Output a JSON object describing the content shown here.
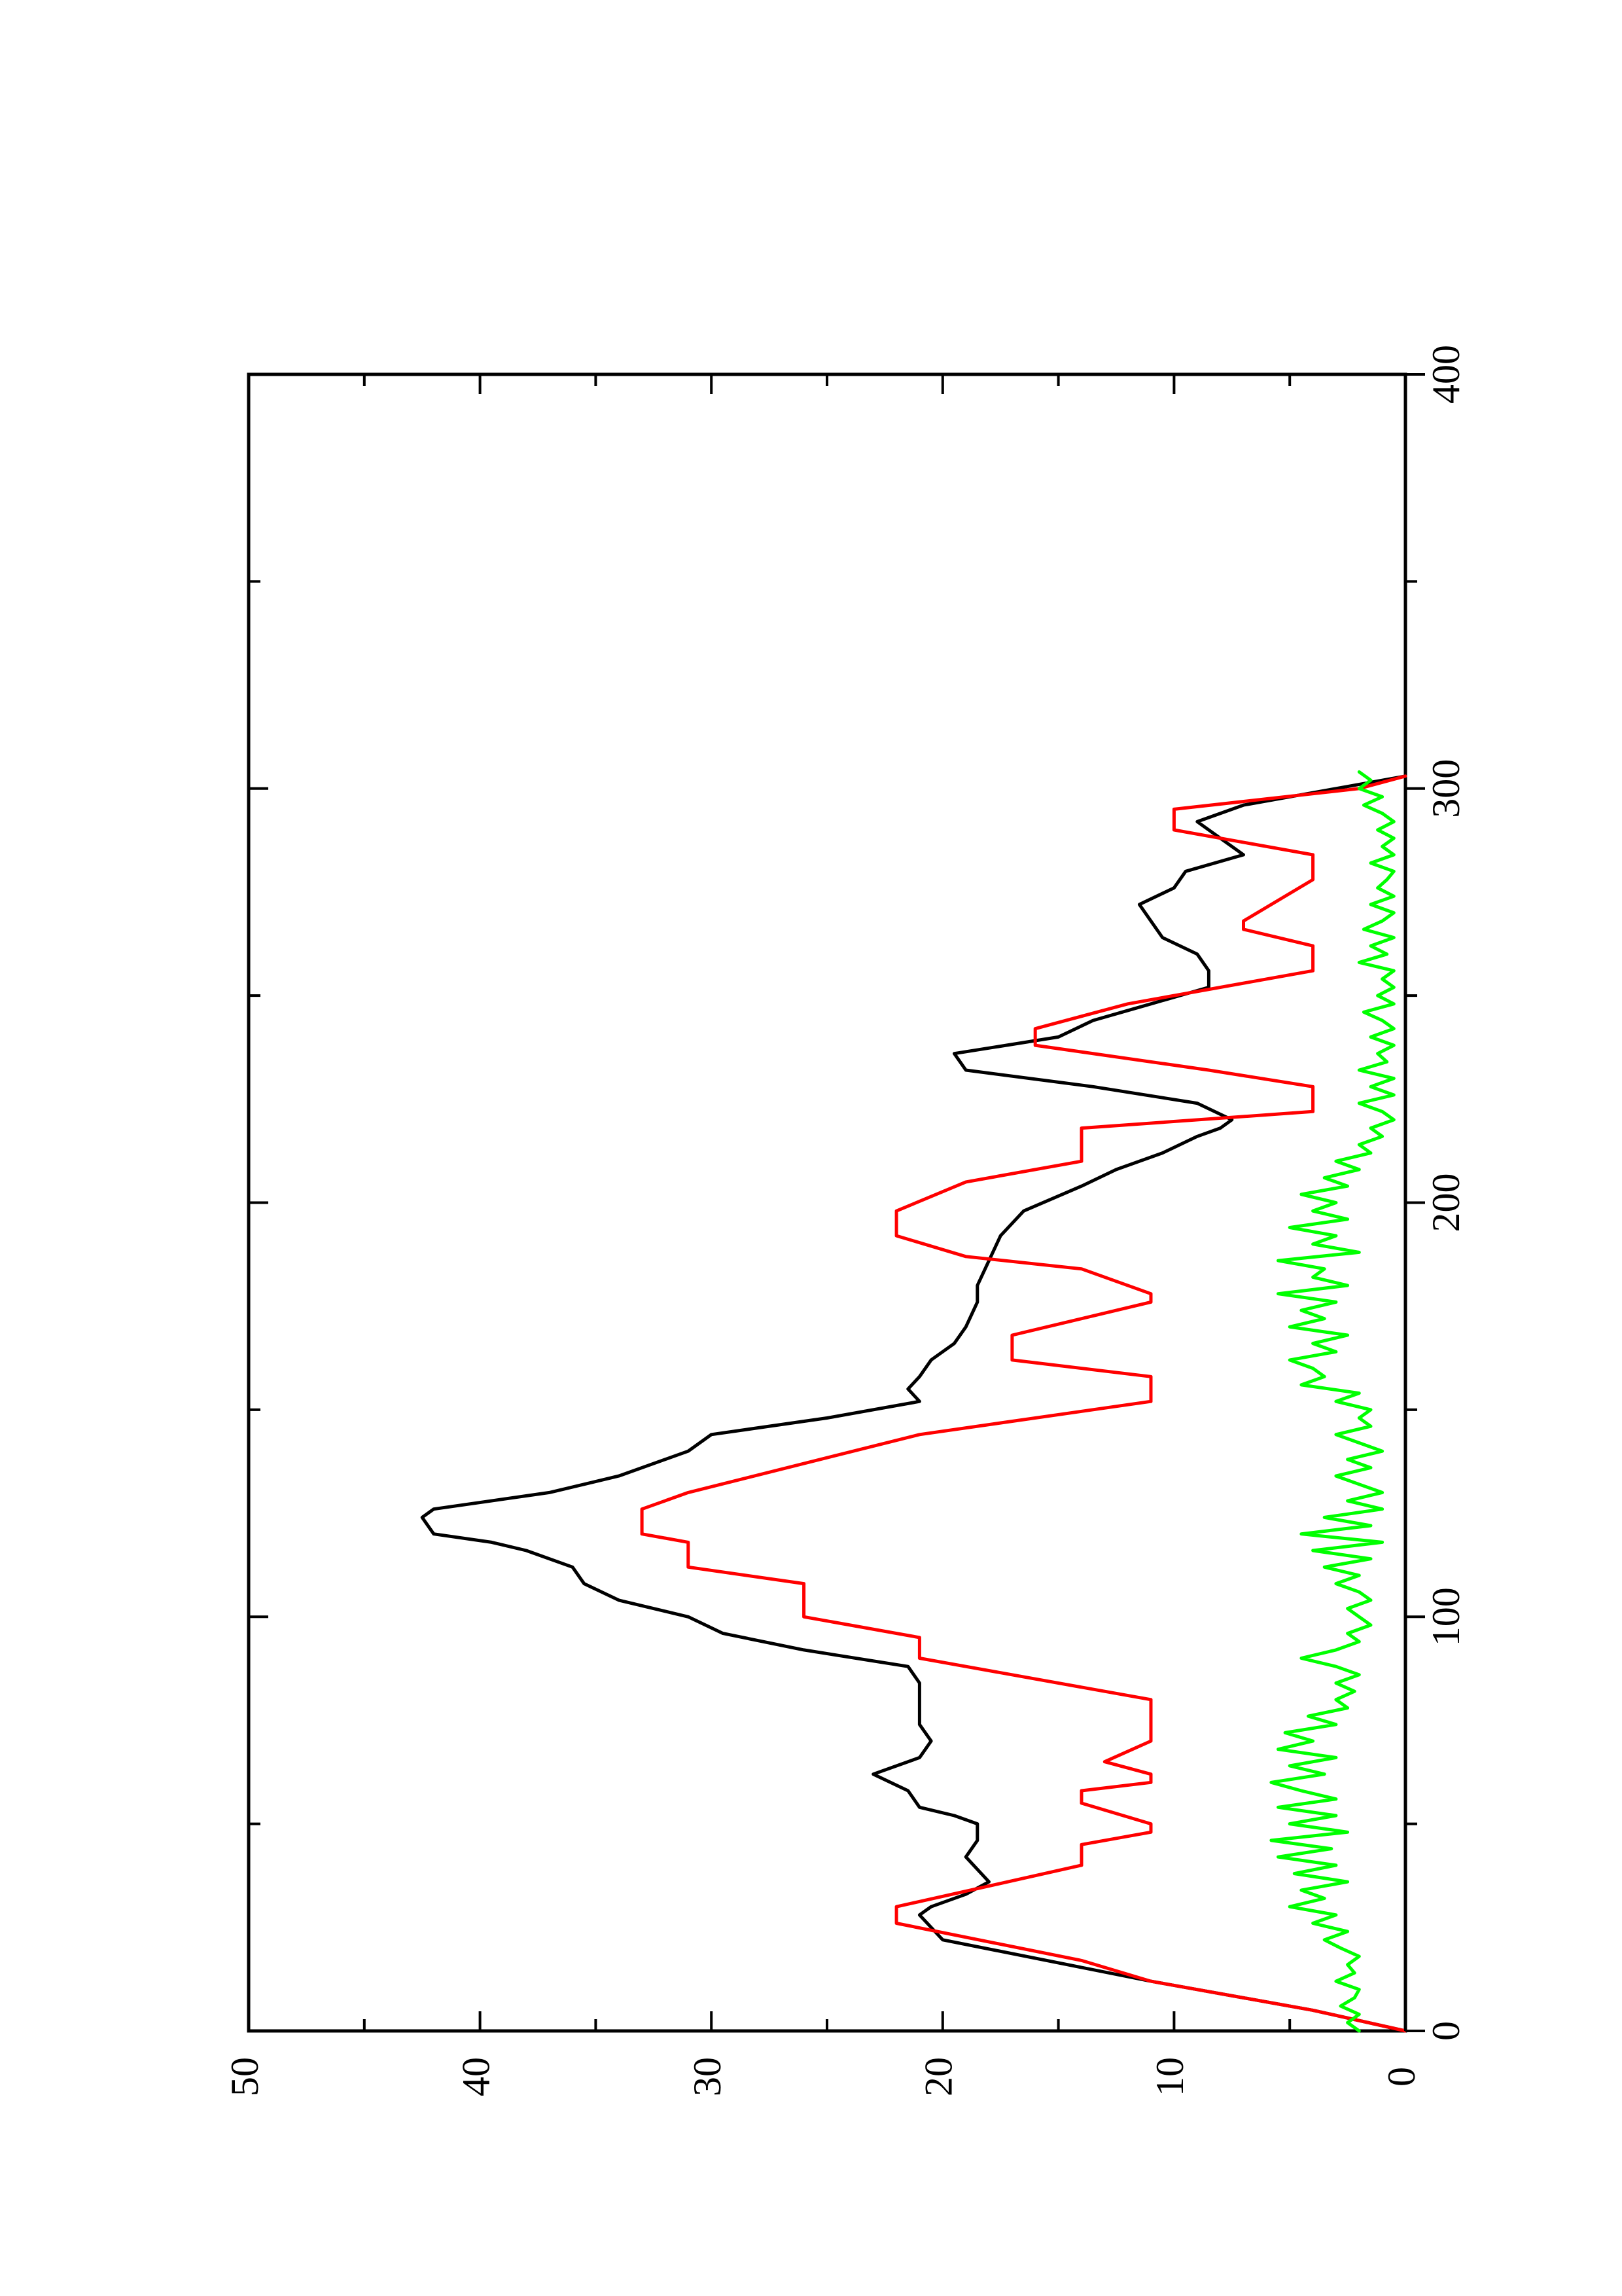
{
  "chart_data": {
    "type": "line",
    "title": "",
    "xlabel": "",
    "ylabel": "",
    "xlim": [
      0,
      400
    ],
    "ylim": [
      0,
      50
    ],
    "x_ticks": [
      0,
      100,
      200,
      300,
      400
    ],
    "y_ticks": [
      0,
      10,
      20,
      30,
      40,
      50
    ],
    "x_minor_ticks": [
      50,
      150,
      250,
      350
    ],
    "y_minor_ticks": [
      5,
      15,
      25,
      35,
      45
    ],
    "grid": false,
    "orientation": "rotated 90 degrees counter-clockwise",
    "series": [
      {
        "color": "#000000",
        "x": [
          0,
          5,
          12,
          22,
          28,
          30,
          33,
          36,
          42,
          46,
          50,
          52,
          54,
          58,
          62,
          66,
          70,
          74,
          80,
          84,
          88,
          92,
          96,
          100,
          104,
          108,
          112,
          116,
          118,
          120,
          124,
          126,
          130,
          134,
          140,
          144,
          148,
          152,
          155,
          158,
          162,
          166,
          170,
          176,
          180,
          186,
          192,
          198,
          204,
          208,
          212,
          216,
          218,
          220,
          224,
          228,
          232,
          236,
          240,
          244,
          248,
          252,
          256,
          260,
          264,
          268,
          272,
          276,
          280,
          284,
          288,
          292,
          296,
          300,
          303
        ],
        "y": [
          0,
          4,
          11,
          20,
          21,
          20.5,
          19,
          18,
          19,
          18.5,
          18.5,
          19.5,
          21,
          21.5,
          23,
          21,
          20.5,
          21,
          21,
          21,
          21.5,
          26,
          29.5,
          31,
          34,
          35.5,
          36,
          38,
          39.5,
          42,
          42.5,
          42,
          37,
          34,
          31,
          30,
          25,
          21,
          21.5,
          21,
          20.5,
          19.5,
          19,
          18.5,
          18.5,
          18,
          17.5,
          16.5,
          14,
          12.5,
          10.5,
          9,
          8,
          7.5,
          9,
          13.5,
          19,
          19.5,
          15,
          13.5,
          11,
          8.5,
          8.5,
          9,
          10.5,
          11,
          11.5,
          10,
          9.5,
          7,
          8,
          9,
          7,
          3,
          0
        ]
      },
      {
        "color": "#ff0000",
        "x": [
          0,
          5,
          12,
          17,
          26,
          30,
          40,
          45,
          48,
          50,
          55,
          58,
          60,
          62,
          65,
          70,
          80,
          85,
          90,
          95,
          100,
          108,
          112,
          118,
          120,
          126,
          130,
          144,
          152,
          158,
          162,
          168,
          176,
          178,
          184,
          187,
          192,
          198,
          205,
          210,
          218,
          222,
          228,
          232,
          238,
          242,
          248,
          256,
          262,
          266,
          268,
          278,
          284,
          290,
          295,
          300,
          303
        ],
        "y": [
          0,
          4,
          11,
          14,
          22,
          22,
          14,
          14,
          11,
          11,
          14,
          14,
          11,
          11,
          13,
          11,
          11,
          16,
          21,
          21,
          26,
          26,
          31,
          31,
          33,
          33,
          31,
          21,
          11,
          11,
          17,
          17,
          11,
          11,
          14,
          19,
          22,
          22,
          19,
          14,
          14,
          4,
          4,
          8.5,
          16,
          16,
          12,
          4,
          4,
          7,
          7,
          4,
          4,
          10,
          10,
          2,
          0
        ]
      },
      {
        "color": "#00ff00",
        "x": [
          0,
          2,
          4,
          6,
          8,
          10,
          12,
          14,
          16,
          18,
          20,
          22,
          24,
          26,
          28,
          30,
          32,
          34,
          36,
          38,
          40,
          42,
          44,
          46,
          48,
          50,
          52,
          54,
          56,
          58,
          60,
          62,
          64,
          66,
          68,
          70,
          72,
          74,
          76,
          78,
          80,
          82,
          84,
          86,
          88,
          90,
          92,
          94,
          96,
          98,
          100,
          102,
          104,
          106,
          108,
          110,
          112,
          114,
          116,
          118,
          120,
          122,
          124,
          126,
          128,
          130,
          132,
          134,
          136,
          138,
          140,
          142,
          144,
          146,
          148,
          150,
          152,
          154,
          156,
          158,
          160,
          162,
          164,
          166,
          168,
          170,
          172,
          174,
          176,
          178,
          180,
          182,
          184,
          186,
          188,
          190,
          192,
          194,
          196,
          198,
          200,
          202,
          204,
          206,
          208,
          210,
          212,
          214,
          216,
          218,
          220,
          222,
          224,
          226,
          228,
          230,
          232,
          234,
          236,
          238,
          240,
          242,
          244,
          246,
          248,
          250,
          252,
          254,
          256,
          258,
          260,
          262,
          264,
          266,
          268,
          270,
          272,
          274,
          276,
          278,
          280,
          282,
          284,
          286,
          288,
          290,
          292,
          294,
          296,
          298,
          300,
          302,
          304
        ],
        "y": [
          2.0,
          2.5,
          2.0,
          2.8,
          2.2,
          2.0,
          3.0,
          2.2,
          2.5,
          2.0,
          2.8,
          3.5,
          2.5,
          4.0,
          3.0,
          5.0,
          3.5,
          4.5,
          2.5,
          4.8,
          3.0,
          5.5,
          3.2,
          5.8,
          2.5,
          5.0,
          3.0,
          5.5,
          3.0,
          4.5,
          5.8,
          3.5,
          5.0,
          3.0,
          5.5,
          4.0,
          5.2,
          3.0,
          4.2,
          2.5,
          3.0,
          2.2,
          3.0,
          2.0,
          3.0,
          4.5,
          3.0,
          2.0,
          2.5,
          1.5,
          2.0,
          2.5,
          1.5,
          2.0,
          3.0,
          2.0,
          3.5,
          1.5,
          4.0,
          1.0,
          4.5,
          1.5,
          3.5,
          1.0,
          2.5,
          1.0,
          2.0,
          3.0,
          1.5,
          2.5,
          1.0,
          2.0,
          3.0,
          1.5,
          2.0,
          1.5,
          3.0,
          2.0,
          4.5,
          3.5,
          4.0,
          5.0,
          3.0,
          4.0,
          2.5,
          5.0,
          3.5,
          4.5,
          3.0,
          5.5,
          2.5,
          4.0,
          3.5,
          5.5,
          2.0,
          4.0,
          3.0,
          5.0,
          2.5,
          4.0,
          3.0,
          4.5,
          2.5,
          3.5,
          2.0,
          3.0,
          1.5,
          2.0,
          1.0,
          1.5,
          0.5,
          1.0,
          2.0,
          0.5,
          1.5,
          0.5,
          2.0,
          0.8,
          1.2,
          0.5,
          1.5,
          0.5,
          1.0,
          1.8,
          0.5,
          1.2,
          0.5,
          1.0,
          0.5,
          2.0,
          0.8,
          1.5,
          0.5,
          1.8,
          1.0,
          0.5,
          1.5,
          0.5,
          1.2,
          0.8,
          0.5,
          1.5,
          0.5,
          1.0,
          0.5,
          1.2,
          0.5,
          1.0,
          1.8,
          1.0,
          2.0,
          1.5,
          2.0
        ]
      }
    ]
  }
}
